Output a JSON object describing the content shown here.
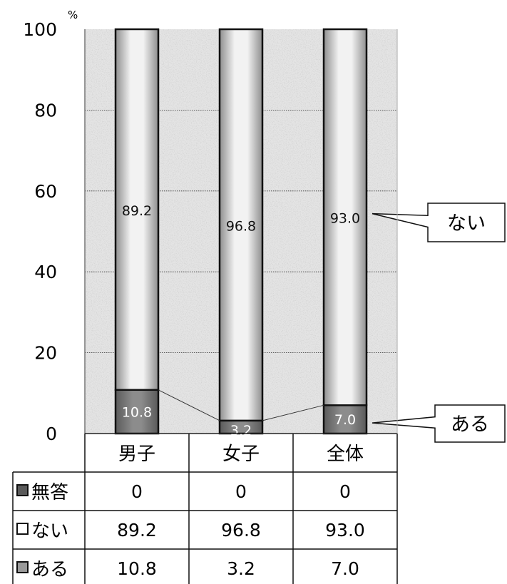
{
  "chart_data": {
    "type": "bar",
    "stacked": true,
    "categories": [
      "男子",
      "女子",
      "全体"
    ],
    "series": [
      {
        "name": "無答",
        "values": [
          0,
          0,
          0
        ],
        "color": "#5a5a5a"
      },
      {
        "name": "ない",
        "values": [
          89.2,
          96.8,
          93.0
        ],
        "color": "#d8d8d8"
      },
      {
        "name": "ある",
        "values": [
          10.8,
          3.2,
          7.0
        ],
        "color": "#7a7a7a"
      }
    ],
    "data_labels": {
      "ない": [
        "89.2",
        "96.8",
        "93.0"
      ],
      "ある": [
        "10.8",
        "3.2",
        "7.0"
      ]
    },
    "ylim": [
      0,
      100
    ],
    "yticks": [
      "0",
      "20",
      "40",
      "60",
      "80",
      "100"
    ],
    "yunit": "%",
    "grid": true,
    "callouts": [
      "ない",
      "ある"
    ],
    "table": {
      "rows": [
        {
          "label": "無答",
          "values": [
            "0",
            "0",
            "0"
          ]
        },
        {
          "label": "ない",
          "values": [
            "89.2",
            "96.8",
            "93.0"
          ]
        },
        {
          "label": "ある",
          "values": [
            "10.8",
            "3.2",
            "7.0"
          ]
        }
      ]
    }
  }
}
